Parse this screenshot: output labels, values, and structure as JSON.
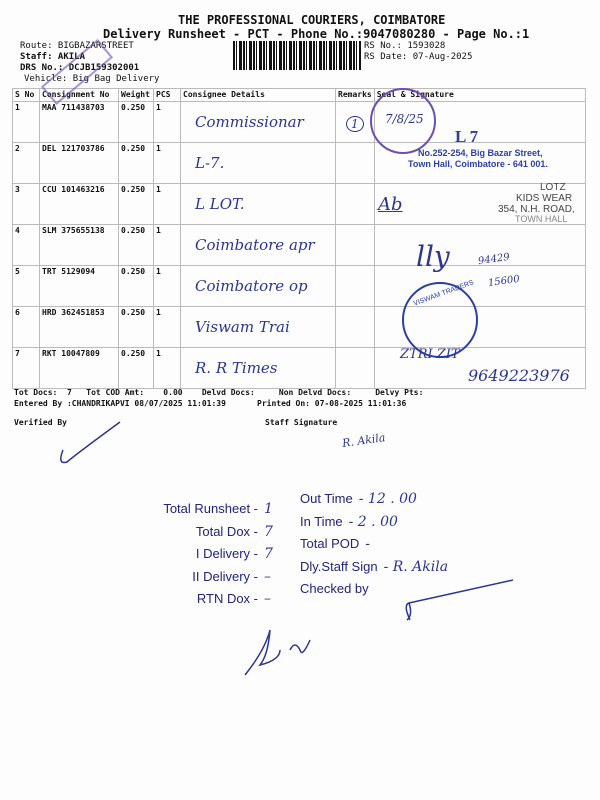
{
  "header": {
    "company": "THE PROFESSIONAL COURIERS, COIMBATORE",
    "subtitle": "Delivery Runsheet - PCT - Phone No.:9047080280 - Page No.:1",
    "route": "Route: BIGBAZARSTREET",
    "staff": "Staff: AKILA",
    "drs": "DRS No.: DCJB159302001",
    "vehicle": "Vehicle: Big Bag Delivery",
    "rs_no": "RS No.: 1593028",
    "rs_date": "RS Date: 07-Aug-2025"
  },
  "table": {
    "columns": [
      "S No",
      "Consignment No",
      "Weight",
      "PCS",
      "Consignee Details",
      "Remarks",
      "Seal & Signature"
    ],
    "rows": [
      {
        "sno": "1",
        "cn": "MAA 711438703",
        "wt": "0.250",
        "pcs": "1",
        "consignee": "Commissionar"
      },
      {
        "sno": "2",
        "cn": "DEL 121703786",
        "wt": "0.250",
        "pcs": "1",
        "consignee": "L-7."
      },
      {
        "sno": "3",
        "cn": "CCU 101463216",
        "wt": "0.250",
        "pcs": "1",
        "consignee": "L LOT."
      },
      {
        "sno": "4",
        "cn": "SLM 375655138",
        "wt": "0.250",
        "pcs": "1",
        "consignee": "Coimbatore apr"
      },
      {
        "sno": "5",
        "cn": "TRT 5129094",
        "wt": "0.250",
        "pcs": "1",
        "consignee": "Coimbatore op"
      },
      {
        "sno": "6",
        "cn": "HRD 362451853",
        "wt": "0.250",
        "pcs": "1",
        "consignee": "Viswam Trai"
      },
      {
        "sno": "7",
        "cn": "RKT 10047809",
        "wt": "0.250",
        "pcs": "1",
        "consignee": "R. R Times"
      }
    ]
  },
  "stamps": {
    "l7_title": "L 7",
    "l7_line1": "No.252-254, Big Bazar Street,",
    "l7_line2": "Town Hall, Coimbatore - 641 001.",
    "lotz1": "LOTZ",
    "lotz2": "KIDS WEAR",
    "lotz3": "354, N.H. ROAD,",
    "lotz4": "TOWN HALL",
    "viswam": "VISWAM TRADERS",
    "date_stamp": "7/8/25",
    "remark_mark": "1",
    "phone1": "94429",
    "phone2": "15600",
    "phone3": "9649223976"
  },
  "totals": {
    "line": "Tot Docs:  7   Tot COD Amt:    0.00    Delvd Docs:     Non Delvd Docs:     Delvy Pts:",
    "entered": "Entered By :CHANDRIKAPVI 08/07/2025 11:01:39",
    "printed": "Printed On: 07-08-2025 11:01:36",
    "verified_by": "Verified By",
    "staff_signature": "Staff Signature",
    "staff_sign_hw": "R. Akila"
  },
  "summary": {
    "left": [
      {
        "label": "Total Runsheet -",
        "value": "1"
      },
      {
        "label": "Total Dox -",
        "value": "7"
      },
      {
        "label": "I Delivery -",
        "value": "7"
      },
      {
        "label": "II Delivery -",
        "value": "–"
      },
      {
        "label": "RTN Dox -",
        "value": "–"
      }
    ],
    "right": [
      {
        "label": "Out Time",
        "value": "- 12 . 00"
      },
      {
        "label": "In Time",
        "value": "- 2 . 00"
      },
      {
        "label": "Total POD",
        "value": "-"
      },
      {
        "label": "Dly.Staff Sign",
        "value": "- R. Akila"
      },
      {
        "label": "Checked by",
        "value": ""
      }
    ]
  },
  "colors": {
    "ink": "#2b3592",
    "stamp_purple": "#6a4fb5",
    "stamp_blue": "#2a3fa8"
  }
}
